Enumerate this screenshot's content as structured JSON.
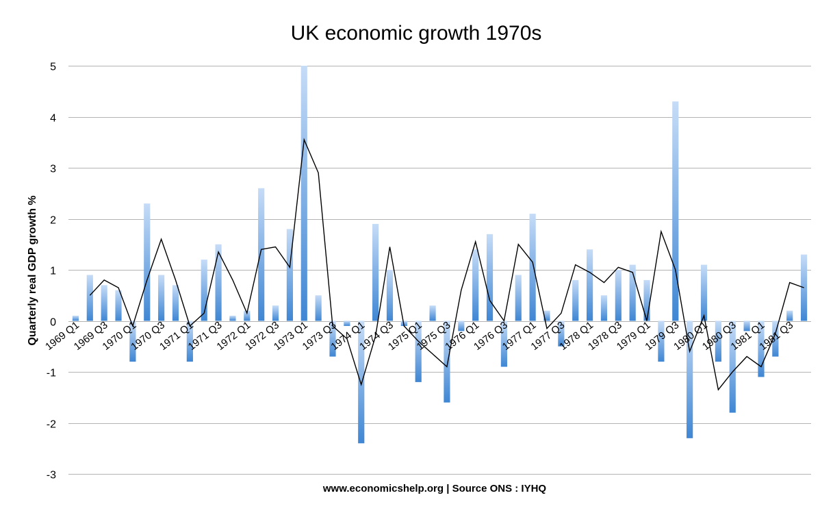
{
  "chart_data": {
    "type": "bar",
    "title": "UK economic growth 1970s",
    "xlabel": "www.economicshelp.org | Source ONS : IYHQ",
    "ylabel": "Quarterly real GDP growth %",
    "ylim": [
      -3,
      5
    ],
    "yticks": [
      -3,
      -2,
      -1,
      0,
      1,
      2,
      3,
      4,
      5
    ],
    "grid": true,
    "tick_labels": [
      "1969 Q1",
      "1969 Q3",
      "1970 Q1",
      "1970 Q3",
      "1971 Q1",
      "1971 Q3",
      "1972 Q1",
      "1972 Q3",
      "1973 Q1",
      "1973 Q3",
      "1974 Q1",
      "1974 Q3",
      "1975 Q1",
      "1975 Q3",
      "1976 Q1",
      "1976 Q3",
      "1977 Q1",
      "1977 Q3",
      "1978 Q1",
      "1978 Q3",
      "1979 Q1",
      "1979 Q3",
      "1980 Q1",
      "1980 Q3",
      "1981 Q1",
      "1981 Q3"
    ],
    "categories": [
      "1969 Q1",
      "1969 Q2",
      "1969 Q3",
      "1969 Q4",
      "1970 Q1",
      "1970 Q2",
      "1970 Q3",
      "1970 Q4",
      "1971 Q1",
      "1971 Q2",
      "1971 Q3",
      "1971 Q4",
      "1972 Q1",
      "1972 Q2",
      "1972 Q3",
      "1972 Q4",
      "1973 Q1",
      "1973 Q2",
      "1973 Q3",
      "1973 Q4",
      "1974 Q1",
      "1974 Q2",
      "1974 Q3",
      "1974 Q4",
      "1975 Q1",
      "1975 Q2",
      "1975 Q3",
      "1975 Q4",
      "1976 Q1",
      "1976 Q2",
      "1976 Q3",
      "1976 Q4",
      "1977 Q1",
      "1977 Q2",
      "1977 Q3",
      "1977 Q4",
      "1978 Q1",
      "1978 Q2",
      "1978 Q3",
      "1978 Q4",
      "1979 Q1",
      "1979 Q2",
      "1979 Q3",
      "1979 Q4",
      "1980 Q1",
      "1980 Q2",
      "1980 Q3",
      "1980 Q4",
      "1981 Q1",
      "1981 Q2",
      "1981 Q3",
      "1981 Q4"
    ],
    "series": [
      {
        "type": "bar",
        "color": "#4a90d9",
        "values": [
          0.1,
          0.9,
          0.7,
          0.6,
          -0.8,
          2.3,
          0.9,
          0.7,
          -0.8,
          1.2,
          1.5,
          0.1,
          0.2,
          2.6,
          0.3,
          1.8,
          5.0,
          0.5,
          -0.7,
          -0.1,
          -2.4,
          1.9,
          1.0,
          -0.1,
          -1.2,
          0.3,
          -1.6,
          -0.2,
          1.4,
          1.7,
          -0.9,
          0.9,
          2.1,
          0.2,
          -0.5,
          0.8,
          1.4,
          0.5,
          1.0,
          1.1,
          0.8,
          -0.8,
          4.3,
          -2.3,
          1.1,
          -0.8,
          -1.8,
          -0.2,
          -1.1,
          -0.7,
          0.2,
          1.3
        ]
      },
      {
        "type": "line",
        "color": "#000000",
        "values": [
          null,
          0.5,
          0.8,
          0.65,
          -0.1,
          0.8,
          1.6,
          0.8,
          -0.1,
          0.15,
          1.35,
          0.8,
          0.15,
          1.4,
          1.45,
          1.05,
          3.55,
          2.9,
          -0.1,
          -0.35,
          -1.25,
          -0.3,
          1.45,
          -0.1,
          -0.4,
          -0.65,
          -0.9,
          0.6,
          1.55,
          0.4,
          0.0,
          1.5,
          1.15,
          -0.15,
          0.15,
          1.1,
          0.95,
          0.75,
          1.05,
          0.95,
          0.0,
          1.75,
          1.0,
          -0.6,
          0.1,
          -1.35,
          -1.0,
          -0.7,
          -0.9,
          -0.25,
          0.75,
          0.65
        ]
      }
    ]
  }
}
